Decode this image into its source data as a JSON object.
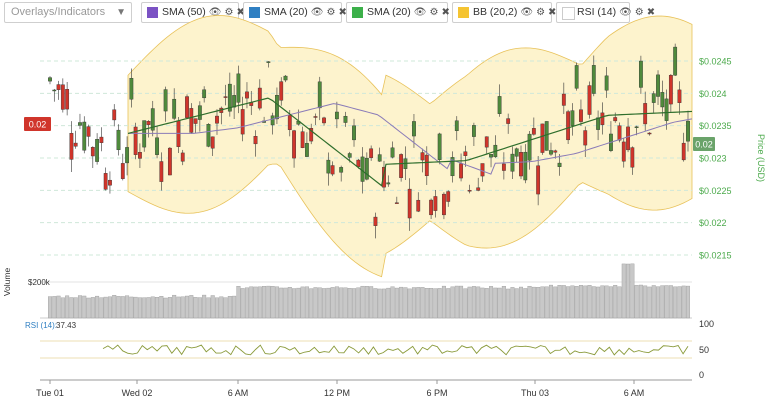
{
  "toolbar": {
    "select_placeholder": "Overlays/Indicators",
    "chips": [
      {
        "label": "SMA (50)",
        "color": "#7b52c4"
      },
      {
        "label": "SMA (20)",
        "color": "#2f7fc2"
      },
      {
        "label": "SMA (20)",
        "color": "#3cb04a"
      },
      {
        "label": "BB (20,2)",
        "color": "#f5c431"
      },
      {
        "label": "RSI (14)",
        "color": "#ffffff"
      }
    ],
    "icons": {
      "eye": "👁",
      "gear": "⚙",
      "close": "✖"
    }
  },
  "price_axis": {
    "title": "Price (USD)",
    "ticks": [
      "$0.0245",
      "$0.024",
      "$0.0235",
      "$0.023",
      "$0.0225",
      "$0.022",
      "$0.0215"
    ]
  },
  "current_price_label": "0.02",
  "last_price_label": "0.02",
  "volume": {
    "axis_title": "Volume",
    "tick": "$200k"
  },
  "rsi": {
    "label": "RSI (14):",
    "value": "37.43",
    "ticks": [
      "100",
      "50",
      "0"
    ]
  },
  "x_axis": {
    "ticks": [
      "Tue 01",
      "Wed 02",
      "6 AM",
      "12 PM",
      "6 PM",
      "Thu 03",
      "6 AM"
    ]
  },
  "colors": {
    "up": "#4f8a3c",
    "down": "#d0352b",
    "band_fill": "#fdf3cd",
    "band_line": "#e8c25a",
    "sma50": "#8a7bb8",
    "sma20": "#2e6e2c",
    "price_axis": "#4caa4c"
  }
}
